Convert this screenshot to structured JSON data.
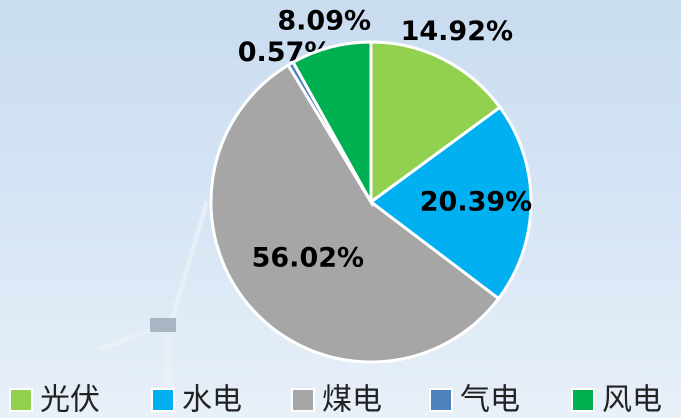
{
  "chart_data": {
    "type": "pie",
    "categories": [
      "光伏",
      "水电",
      "煤电",
      "气电",
      "风电"
    ],
    "values": [
      14.92,
      20.39,
      56.02,
      0.57,
      8.09
    ],
    "value_labels": [
      "14.92%",
      "20.39%",
      "56.02%",
      "0.57%",
      "8.09%"
    ],
    "colors": [
      "#92d050",
      "#00b0f0",
      "#a6a6a6",
      "#4f81bd",
      "#00b050"
    ],
    "legend": "bottom"
  }
}
